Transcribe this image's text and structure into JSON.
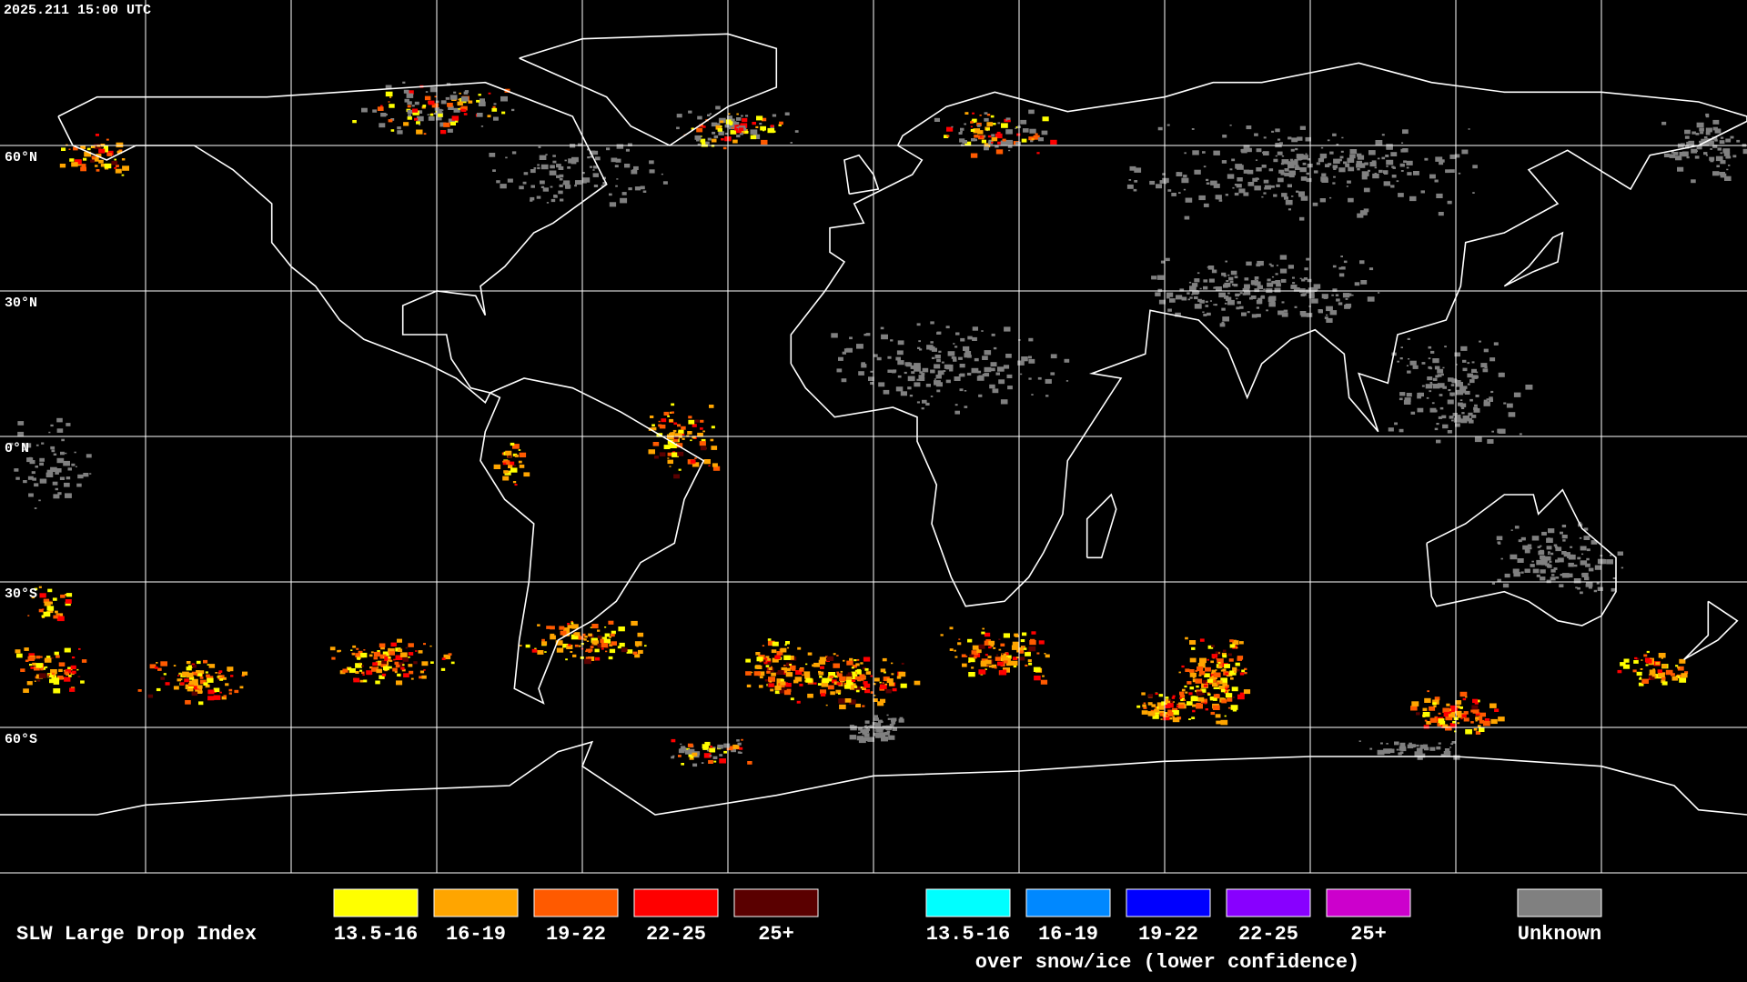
{
  "header": {
    "timestamp": "2025.211 15:00 UTC"
  },
  "map": {
    "latitude_labels": [
      "60°N",
      "30°N",
      "0°N",
      "30°S",
      "60°S"
    ]
  },
  "legend": {
    "title": "SLW Large Drop Index",
    "groups": [
      {
        "items": [
          {
            "label": "13.5-16",
            "color": "#ffff00"
          },
          {
            "label": "16-19",
            "color": "#ffa500"
          },
          {
            "label": "19-22",
            "color": "#ff5a00"
          },
          {
            "label": "22-25",
            "color": "#ff0000"
          },
          {
            "label": "25+",
            "color": "#5a0000"
          }
        ]
      },
      {
        "caption": "over snow/ice (lower confidence)",
        "items": [
          {
            "label": "13.5-16",
            "color": "#00ffff"
          },
          {
            "label": "16-19",
            "color": "#0088ff"
          },
          {
            "label": "19-22",
            "color": "#0000ff"
          },
          {
            "label": "22-25",
            "color": "#8800ff"
          },
          {
            "label": "25+",
            "color": "#cc00cc"
          }
        ]
      },
      {
        "items": [
          {
            "label": "Unknown",
            "color": "#808080"
          }
        ]
      }
    ]
  }
}
